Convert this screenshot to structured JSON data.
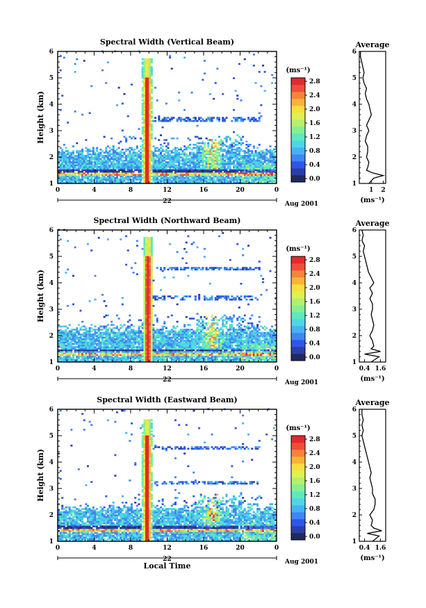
{
  "colors": {
    "colormap": [
      "#202a5c",
      "#2a3fa8",
      "#2f56e8",
      "#3f86f0",
      "#47b2f3",
      "#4fd6e6",
      "#5ee8c0",
      "#86f090",
      "#b4f070",
      "#e0f050",
      "#f7df3e",
      "#f9b23a",
      "#f6833a",
      "#ef4d3a",
      "#e12a2e"
    ],
    "profile": "#000000"
  },
  "date_label": "Aug 2001",
  "day_label": "22",
  "time_axis_label": "Local Time",
  "colorbar_unit": "(ms⁻¹)",
  "colorbar_ticks": [
    "2.8",
    "2.4",
    "2.0",
    "1.6",
    "1.2",
    "0.8",
    "0.4",
    "0.0"
  ],
  "chart_data": [
    {
      "type": "heatmap",
      "title": "Spectral Width (Vertical Beam)",
      "xlabel": "",
      "ylabel": "Height (km)",
      "x_ticks": [
        "0",
        "4",
        "8",
        "12",
        "16",
        "20",
        "0"
      ],
      "y_ticks": [
        "1",
        "2",
        "3",
        "4",
        "5",
        "6"
      ],
      "xlim": [
        0,
        24
      ],
      "ylim": [
        1,
        6
      ],
      "date_label": "Aug 2001",
      "colorbar_range": [
        0.0,
        3.0
      ],
      "features": {
        "enhanced_band_height_km": 1.35,
        "convective_burst_time_h": 9.7,
        "convective_burst_top_km": 5.7,
        "stray_layer_height_km": 3.4
      },
      "average_profile": {
        "title": "Average",
        "xlabel": "(ms⁻¹)",
        "x_ticks": [
          "1",
          "2"
        ],
        "xlim": [
          0.0,
          2.2
        ],
        "y_ticks": [
          "1",
          "2",
          "3",
          "4",
          "5",
          "6"
        ],
        "heights": [
          1.0,
          1.2,
          1.3,
          1.4,
          1.5,
          1.6,
          1.8,
          2.0,
          2.2,
          2.4,
          2.6,
          2.8,
          3.0,
          3.2,
          3.4,
          3.6,
          3.8,
          4.0,
          4.2,
          4.4,
          4.6,
          4.8,
          5.0,
          5.2,
          5.4,
          5.6,
          5.8,
          6.0
        ],
        "values": [
          0.8,
          1.2,
          2.0,
          1.1,
          0.6,
          0.7,
          0.8,
          0.6,
          0.7,
          0.7,
          0.5,
          0.6,
          0.8,
          0.6,
          0.8,
          1.0,
          0.9,
          0.8,
          0.6,
          0.5,
          0.6,
          0.4,
          0.3,
          0.4,
          0.3,
          0.2,
          0.1,
          0.1
        ]
      }
    },
    {
      "type": "heatmap",
      "title": "Spectral Width (Northward Beam)",
      "xlabel": "",
      "ylabel": "Height (km)",
      "x_ticks": [
        "0",
        "4",
        "8",
        "12",
        "16",
        "20",
        "0"
      ],
      "y_ticks": [
        "1",
        "2",
        "3",
        "4",
        "5",
        "6"
      ],
      "xlim": [
        0,
        24
      ],
      "ylim": [
        1,
        6
      ],
      "date_label": "Aug 2001",
      "colorbar_range": [
        0.0,
        3.0
      ],
      "features": {
        "enhanced_band_height_km": 1.3,
        "convective_burst_time_h": 9.8,
        "convective_burst_top_km": 5.7,
        "stray_layer_heights_km": [
          3.4,
          4.5
        ]
      },
      "average_profile": {
        "title": "Average",
        "xlabel": "(ms⁻¹)",
        "x_ticks": [
          "0.4",
          "1.6"
        ],
        "xlim": [
          0.0,
          2.0
        ],
        "y_ticks": [
          "1",
          "2",
          "3",
          "4",
          "5",
          "6"
        ],
        "heights": [
          1.0,
          1.2,
          1.3,
          1.4,
          1.5,
          1.6,
          1.8,
          2.0,
          2.2,
          2.4,
          2.6,
          2.8,
          3.0,
          3.2,
          3.4,
          3.6,
          3.8,
          4.0,
          4.2,
          4.4,
          4.6,
          4.8,
          5.0,
          5.2,
          5.4,
          5.6,
          5.8,
          6.0
        ],
        "values": [
          0.9,
          1.5,
          0.4,
          1.6,
          0.9,
          1.1,
          1.0,
          0.8,
          1.0,
          1.1,
          1.0,
          0.9,
          1.0,
          1.0,
          0.8,
          1.0,
          0.8,
          1.1,
          0.9,
          0.7,
          0.6,
          0.5,
          0.4,
          0.3,
          0.4,
          0.2,
          0.3,
          0.2
        ]
      }
    },
    {
      "type": "heatmap",
      "title": "Spectral Width (Eastward Beam)",
      "xlabel": "Local Time",
      "ylabel": "Height (km)",
      "x_ticks": [
        "0",
        "4",
        "8",
        "12",
        "16",
        "20",
        "0"
      ],
      "y_ticks": [
        "1",
        "2",
        "3",
        "4",
        "5",
        "6"
      ],
      "xlim": [
        0,
        24
      ],
      "ylim": [
        1,
        6
      ],
      "date_label": "Aug 2001",
      "colorbar_range": [
        0.0,
        3.0
      ],
      "features": {
        "enhanced_band_height_km": 1.4,
        "convective_burst_time_h": 9.7,
        "convective_burst_top_km": 5.6,
        "stray_layer_heights_km": [
          3.2,
          4.5
        ]
      },
      "average_profile": {
        "title": "Average",
        "xlabel": "(ms⁻¹)",
        "x_ticks": [
          "0.4",
          "1.6"
        ],
        "xlim": [
          0.0,
          2.0
        ],
        "y_ticks": [
          "1",
          "2",
          "3",
          "4",
          "5",
          "6"
        ],
        "heights": [
          1.0,
          1.2,
          1.3,
          1.4,
          1.5,
          1.6,
          1.8,
          2.0,
          2.2,
          2.4,
          2.6,
          2.8,
          3.0,
          3.2,
          3.4,
          3.6,
          3.8,
          4.0,
          4.2,
          4.4,
          4.6,
          4.8,
          5.0,
          5.2,
          5.4,
          5.6,
          5.8,
          6.0
        ],
        "values": [
          1.0,
          1.5,
          0.6,
          1.7,
          1.1,
          0.9,
          1.0,
          0.8,
          1.1,
          1.2,
          1.2,
          1.0,
          1.0,
          0.9,
          0.8,
          0.9,
          0.8,
          0.7,
          0.6,
          0.5,
          0.4,
          0.3,
          0.2,
          0.3,
          0.2,
          0.3,
          0.2,
          0.2
        ]
      }
    }
  ]
}
